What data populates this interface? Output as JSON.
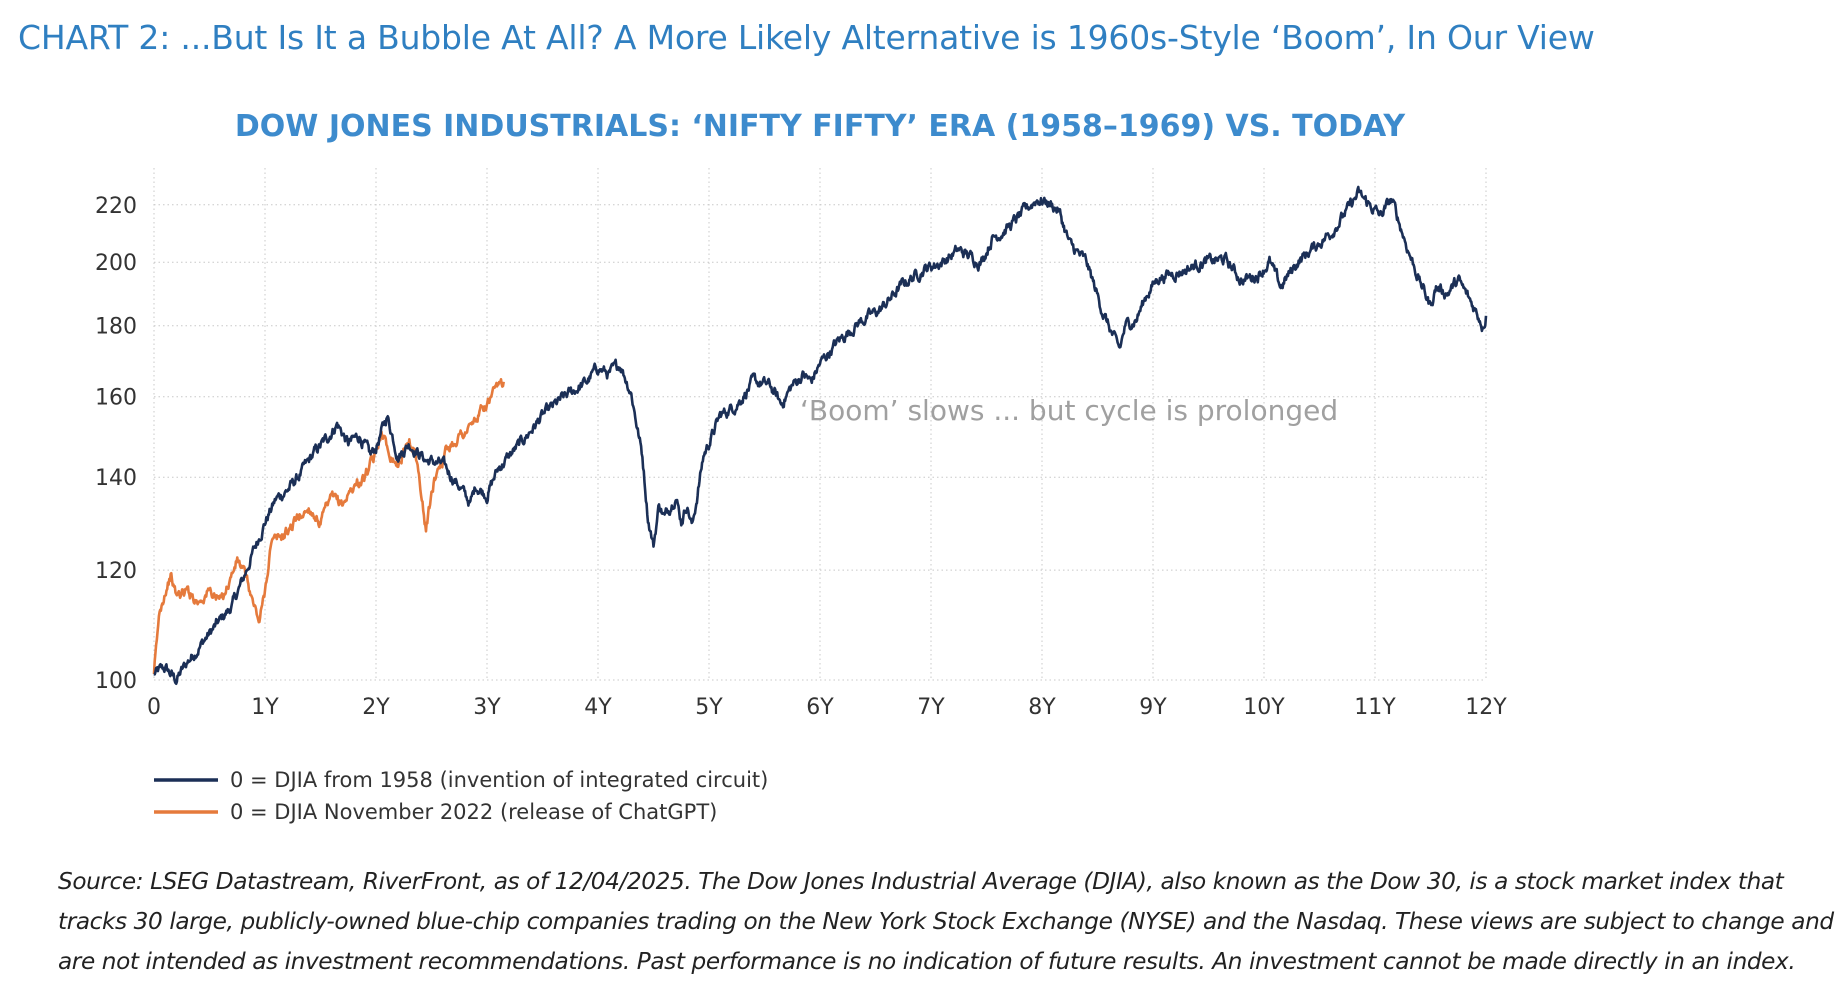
{
  "header": {
    "title": "CHART 2: ...But Is It a Bubble At All? A More Likely Alternative is 1960s-Style ‘Boom’, In Our View"
  },
  "chart_data": {
    "type": "line",
    "title": "DOW JONES INDUSTRIALS: ‘NIFTY FIFTY’ ERA (1958–1969) VS. TODAY",
    "xlabel": "",
    "ylabel": "",
    "y_scale": "log",
    "xlim": [
      0,
      12
    ],
    "ylim": [
      100,
      230
    ],
    "x_ticks": [
      0,
      1,
      2,
      3,
      4,
      5,
      6,
      7,
      8,
      9,
      10,
      11,
      12
    ],
    "x_tick_labels": [
      "0",
      "1Y",
      "2Y",
      "3Y",
      "4Y",
      "5Y",
      "6Y",
      "7Y",
      "8Y",
      "9Y",
      "10Y",
      "11Y",
      "12Y"
    ],
    "y_ticks": [
      100,
      120,
      140,
      160,
      180,
      200,
      220
    ],
    "y_tick_labels": [
      "100",
      "120",
      "140",
      "160",
      "180",
      "200",
      "220"
    ],
    "grid": true,
    "annotation": "‘Boom’ slows ... but cycle is prolonged",
    "series": [
      {
        "name": "0 = DJIA from 1958 (invention of integrated circuit)",
        "color": "#1b2f56",
        "x": [
          0,
          0.1,
          0.2,
          0.3,
          0.5,
          0.7,
          0.8,
          0.9,
          1.0,
          1.1,
          1.2,
          1.3,
          1.45,
          1.55,
          1.65,
          1.75,
          1.85,
          1.95,
          2.0,
          2.1,
          2.2,
          2.3,
          2.45,
          2.6,
          2.75,
          2.85,
          2.9,
          3.0,
          3.1,
          3.3,
          3.5,
          3.7,
          3.9,
          4.0,
          4.1,
          4.2,
          4.3,
          4.4,
          4.45,
          4.5,
          4.55,
          4.6,
          4.7,
          4.75,
          4.8,
          4.85,
          4.95,
          5.1,
          5.25,
          5.4,
          5.55,
          5.65,
          5.75,
          5.85,
          5.92,
          6.0,
          6.15,
          6.35,
          6.55,
          6.75,
          6.95,
          7.1,
          7.25,
          7.35,
          7.45,
          7.55,
          7.7,
          7.85,
          7.95,
          8.05,
          8.15,
          8.25,
          8.4,
          8.55,
          8.65,
          8.7,
          8.75,
          8.85,
          8.95,
          9.05,
          9.25,
          9.45,
          9.65,
          9.8,
          9.95,
          10.05,
          10.15,
          10.3,
          10.45,
          10.6,
          10.75,
          10.85,
          10.95,
          11.05,
          11.15,
          11.3,
          11.4,
          11.5,
          11.55,
          11.65,
          11.75,
          11.85,
          11.95,
          11.97,
          12.0
        ],
        "values": [
          101,
          102,
          100,
          103,
          108,
          113,
          118,
          124,
          130,
          135,
          137,
          140,
          146,
          149,
          153,
          148,
          150,
          145,
          147,
          155,
          145,
          148,
          144,
          143,
          138,
          134,
          138,
          136,
          142,
          148,
          155,
          160,
          164,
          168,
          166,
          169,
          161,
          145,
          131,
          125,
          134,
          131,
          136,
          130,
          134,
          129,
          145,
          155,
          158,
          164,
          163,
          158,
          163,
          166,
          164,
          169,
          175,
          181,
          185,
          193,
          198,
          200,
          204,
          202,
          200,
          208,
          212,
          218,
          222,
          221,
          218,
          206,
          200,
          184,
          176,
          173,
          180,
          182,
          190,
          195,
          197,
          200,
          201,
          194,
          196,
          200,
          192,
          200,
          205,
          210,
          218,
          224,
          220,
          216,
          222,
          204,
          194,
          186,
          192,
          190,
          194,
          188,
          182,
          180,
          183
        ]
      },
      {
        "name": "0 = DJIA November 2022 (release of ChatGPT)",
        "color": "#e57a3c",
        "x": [
          0,
          0.05,
          0.1,
          0.15,
          0.2,
          0.3,
          0.4,
          0.5,
          0.6,
          0.7,
          0.75,
          0.8,
          0.85,
          0.9,
          0.95,
          1.0,
          1.05,
          1.1,
          1.2,
          1.3,
          1.4,
          1.5,
          1.6,
          1.7,
          1.8,
          1.9,
          2.0,
          2.05,
          2.1,
          2.2,
          2.3,
          2.35,
          2.4,
          2.45,
          2.5,
          2.55,
          2.65,
          2.75,
          2.85,
          2.95,
          3.05,
          3.15
        ],
        "values": [
          101,
          112,
          116,
          119,
          115,
          116,
          114,
          116,
          114,
          119,
          122,
          120,
          117,
          113,
          110,
          116,
          125,
          126,
          128,
          131,
          133,
          130,
          135,
          134,
          138,
          140,
          145,
          152,
          147,
          143,
          149,
          146,
          138,
          128,
          136,
          142,
          147,
          150,
          152,
          156,
          160,
          164
        ]
      }
    ]
  },
  "legend": {
    "items": [
      {
        "label": "0 = DJIA from 1958 (invention of integrated circuit)",
        "color": "#1b2f56"
      },
      {
        "label": "0 = DJIA November 2022 (release of ChatGPT)",
        "color": "#e57a3c"
      }
    ]
  },
  "footer": {
    "note": "Source: LSEG Datastream, RiverFront, as of 12/04/2025. The Dow Jones Industrial Average (DJIA), also known as the Dow 30, is a stock market index that tracks 30 large, publicly-owned blue-chip companies trading on the New York Stock Exchange (NYSE) and the Nasdaq. These views are subject to change and are not intended as investment recommendations. Past performance is no indication of future results. An investment cannot be made directly in an index."
  }
}
